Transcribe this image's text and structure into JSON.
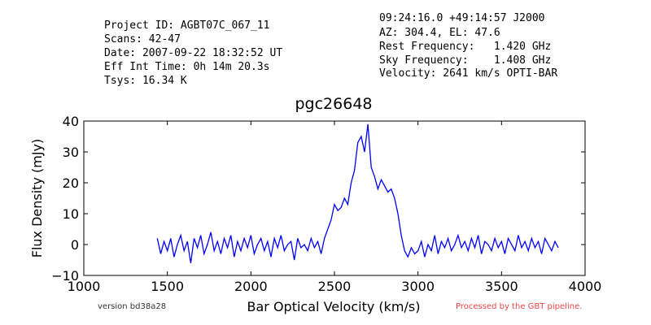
{
  "header": {
    "left": [
      "Project ID: AGBT07C_067_11",
      "Scans: 42-47",
      "Date: 2007-09-22 18:32:52 UT",
      "Eff Int Time: 0h 14m 20.3s",
      "Tsys: 16.34 K"
    ],
    "right": [
      "09:24:16.0 +49:14:57 J2000",
      "AZ: 304.4, EL: 47.6",
      "Rest Frequency:   1.420 GHz",
      "Sky Frequency:    1.408 GHz",
      "Velocity: 2641 km/s OPTI-BAR"
    ]
  },
  "footer": {
    "version": "version bd38a28",
    "pipeline": "Processed by the GBT pipeline."
  },
  "chart_data": {
    "type": "line",
    "title": "pgc26648",
    "x_label": "Bar Optical Velocity (km/s)",
    "y_label": "Flux Density (mJy)",
    "xlim": [
      1000,
      4000
    ],
    "ylim": [
      -10,
      40
    ],
    "xticks": [
      1000,
      1500,
      2000,
      2500,
      3000,
      3500,
      4000
    ],
    "yticks": [
      {
        "value": -10,
        "label": "−10"
      },
      0,
      10,
      20,
      30,
      40
    ],
    "series": [
      {
        "color": "#0000ff",
        "x": [
          1440,
          1460,
          1480,
          1500,
          1520,
          1540,
          1560,
          1580,
          1600,
          1620,
          1640,
          1660,
          1680,
          1700,
          1720,
          1740,
          1760,
          1780,
          1800,
          1820,
          1840,
          1860,
          1880,
          1900,
          1920,
          1940,
          1960,
          1980,
          2000,
          2020,
          2040,
          2060,
          2080,
          2100,
          2120,
          2140,
          2160,
          2180,
          2200,
          2220,
          2240,
          2260,
          2280,
          2300,
          2320,
          2340,
          2360,
          2380,
          2400,
          2420,
          2440,
          2460,
          2480,
          2500,
          2520,
          2540,
          2560,
          2580,
          2600,
          2620,
          2640,
          2660,
          2680,
          2700,
          2720,
          2740,
          2760,
          2780,
          2800,
          2820,
          2840,
          2860,
          2880,
          2900,
          2920,
          2940,
          2960,
          2980,
          3000,
          3020,
          3040,
          3060,
          3080,
          3100,
          3120,
          3140,
          3160,
          3180,
          3200,
          3220,
          3240,
          3260,
          3280,
          3300,
          3320,
          3340,
          3360,
          3380,
          3400,
          3420,
          3440,
          3460,
          3480,
          3500,
          3520,
          3540,
          3560,
          3580,
          3600,
          3620,
          3640,
          3660,
          3680,
          3700,
          3720,
          3740,
          3760,
          3780,
          3800,
          3820,
          3840
        ],
        "values": [
          2,
          -3,
          1,
          -2,
          2,
          -4,
          0,
          3,
          -2,
          1,
          -6,
          2,
          -1,
          3,
          -3,
          0,
          4,
          -2,
          1,
          -3,
          2,
          -1,
          3,
          -4,
          1,
          -2,
          2,
          -1,
          3,
          -3,
          0,
          2,
          -2,
          1,
          -4,
          2,
          -1,
          3,
          -2,
          0,
          1,
          -5,
          2,
          -1,
          0,
          -2,
          2,
          -1,
          1,
          -3,
          2,
          5,
          8,
          13,
          11,
          12,
          15,
          13,
          20,
          24,
          33,
          35,
          30,
          39,
          25,
          22,
          18,
          21,
          19,
          17,
          18,
          15,
          10,
          3,
          -2,
          -4,
          -1,
          -3,
          -2,
          1,
          -4,
          0,
          -2,
          3,
          -3,
          1,
          -1,
          2,
          -2,
          0,
          3,
          -1,
          1,
          -2,
          2,
          -1,
          3,
          -3,
          1,
          0,
          -2,
          2,
          -1,
          1,
          -3,
          2,
          0,
          -2,
          3,
          -1,
          1,
          -2,
          2,
          -1,
          1,
          -3,
          2,
          0,
          -2,
          1,
          -1
        ]
      }
    ]
  }
}
